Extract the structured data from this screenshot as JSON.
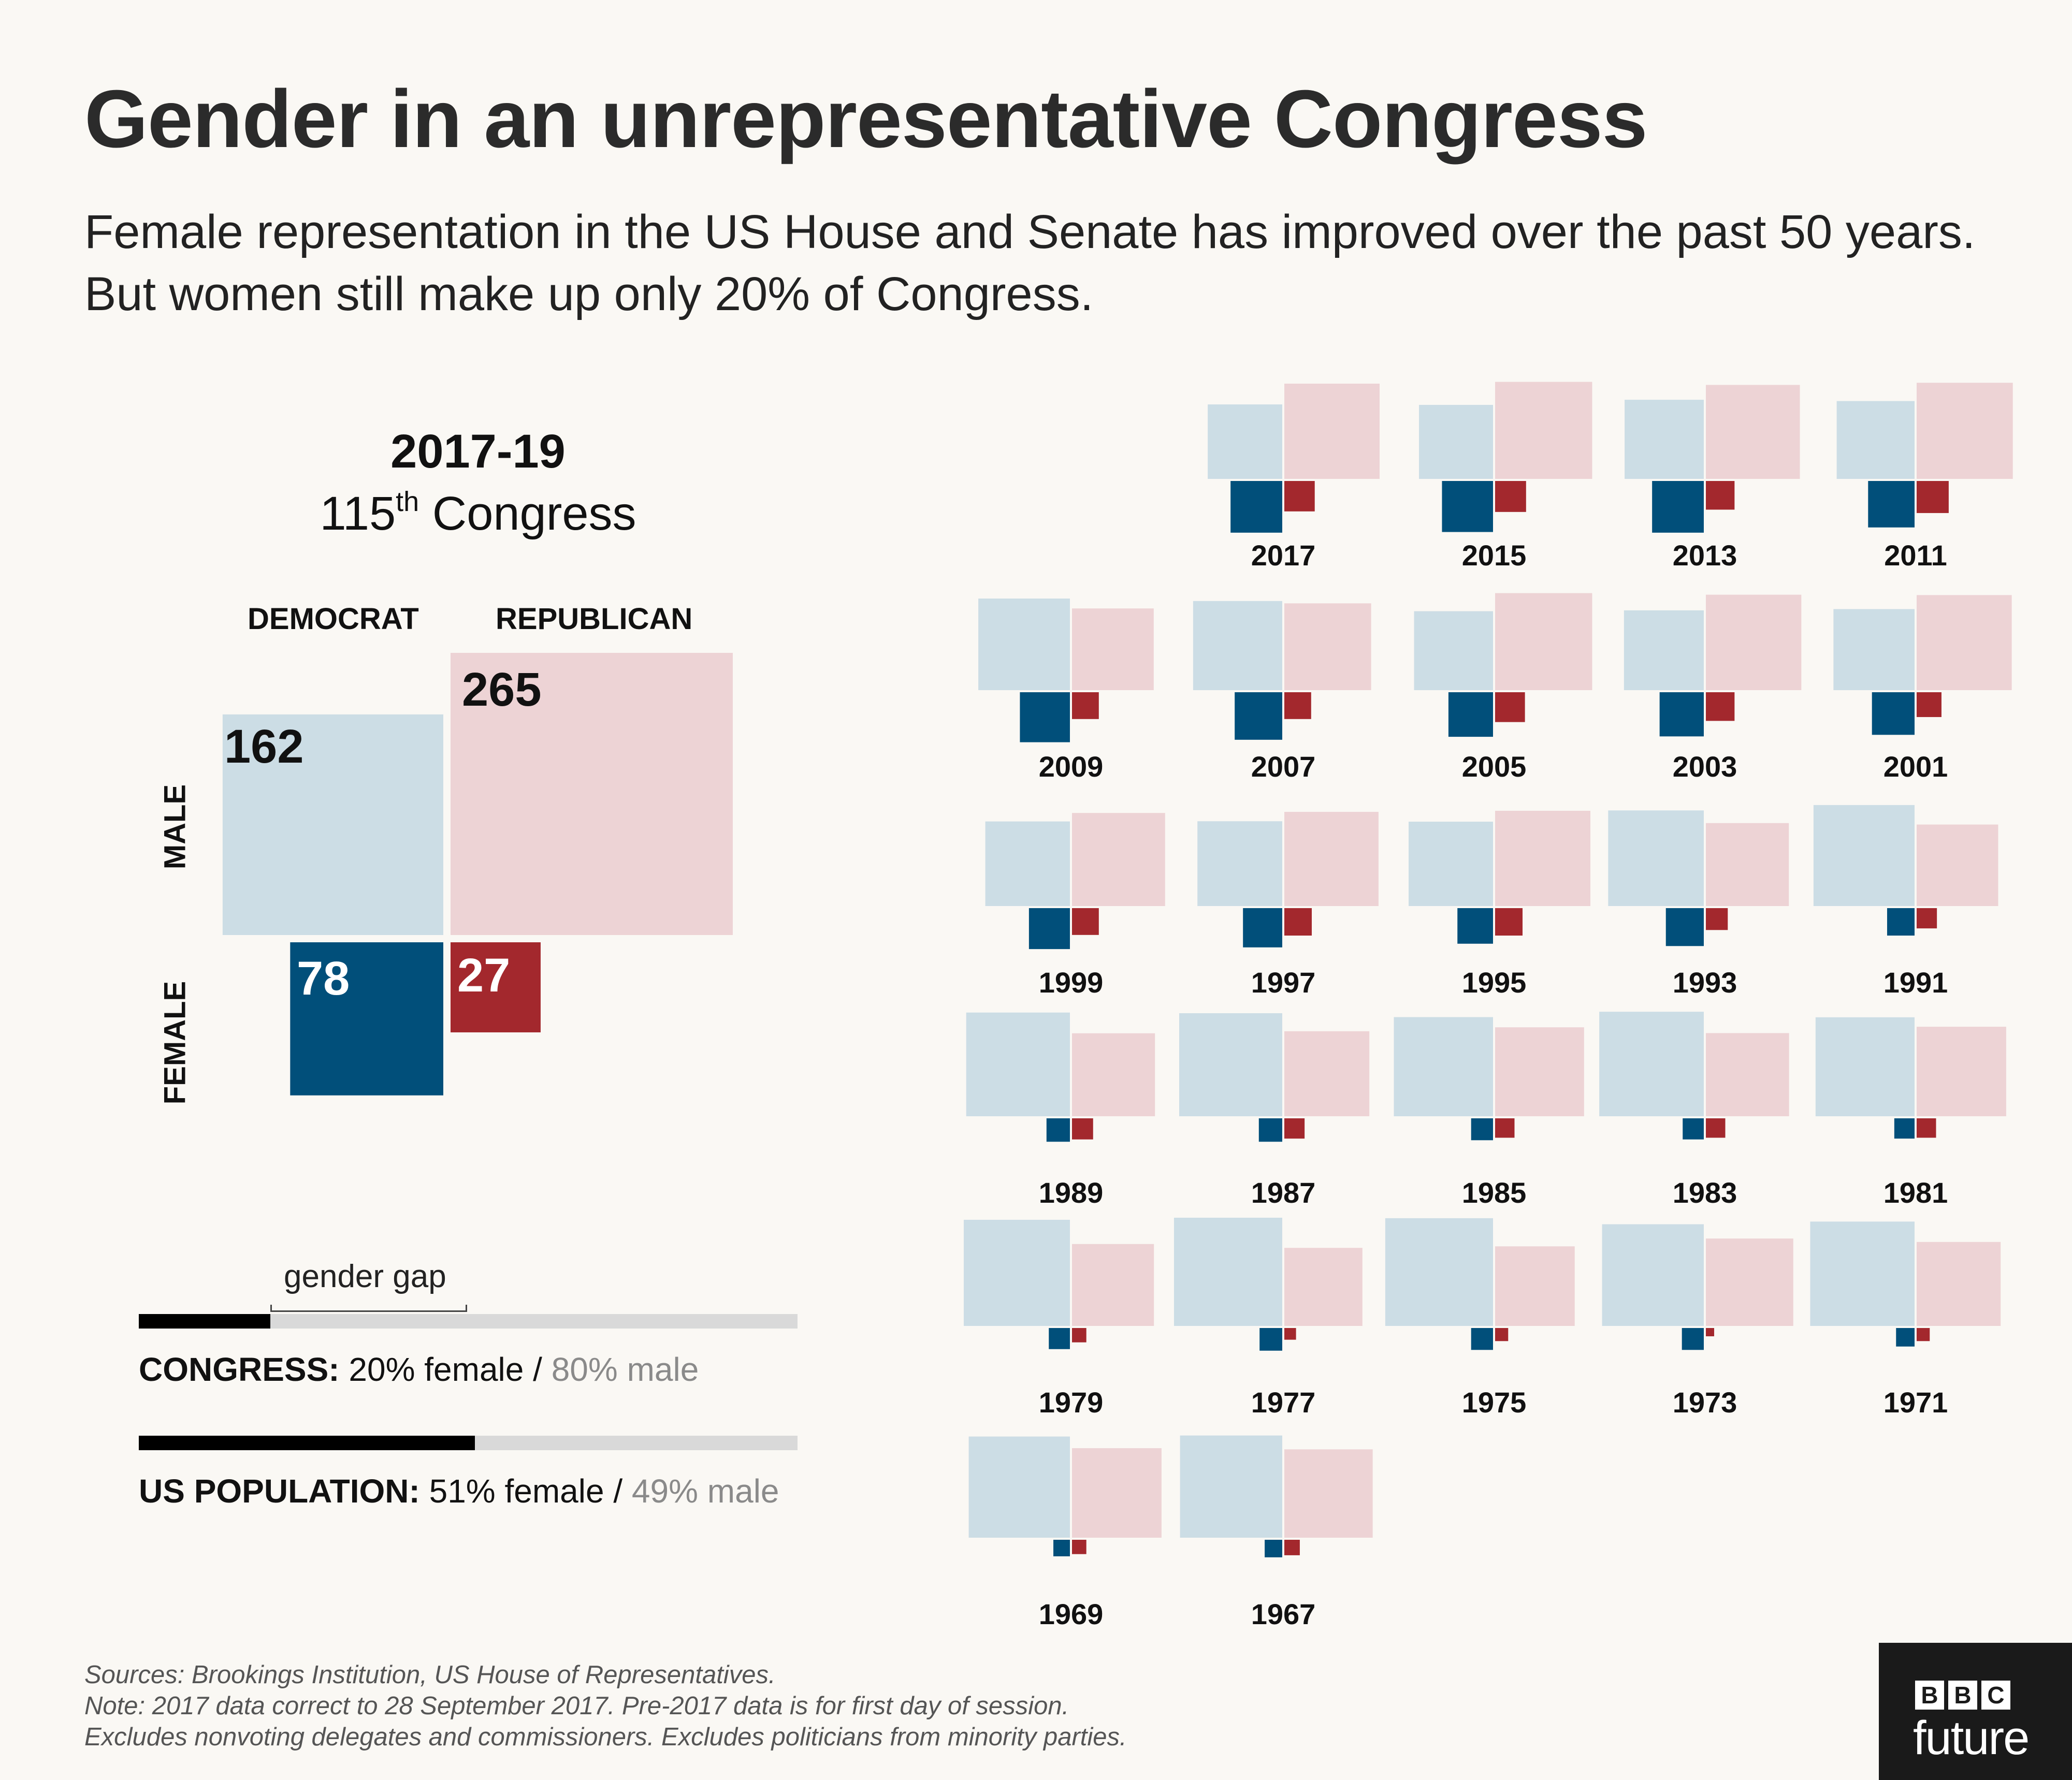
{
  "title": "Gender in an unrepresentative Congress",
  "subtitle": "Female representation in the US House and Senate has improved over the past 50 years. But women still make up only 20% of Congress.",
  "colors": {
    "dem_male": "#ccdde5",
    "rep_male": "#edd3d5",
    "dem_female": "#014f7a",
    "rep_female": "#a3282d",
    "background": "#faf8f4"
  },
  "chart_data": [
    {
      "type": "table",
      "period": "2017-19",
      "congress_number": "115",
      "congress_suffix": "th",
      "congress_word": "Congress",
      "columns": [
        "DEMOCRAT",
        "REPUBLICAN"
      ],
      "rows": [
        "MALE",
        "FEMALE"
      ],
      "values": {
        "dem_male": 162,
        "rep_male": 265,
        "dem_female": 78,
        "rep_female": 27
      }
    },
    {
      "type": "bar",
      "gap_label": "gender gap",
      "bars": [
        {
          "label": "CONGRESS:",
          "female_pct": 20,
          "male_pct": 80,
          "female_text": "20% female",
          "male_text": "80% male"
        },
        {
          "label": "US POPULATION:",
          "female_pct": 51,
          "male_pct": 49,
          "female_text": "51% female",
          "male_text": "49% male"
        }
      ]
    },
    {
      "type": "bar",
      "years": [
        {
          "year": "2017",
          "dem_male": 162,
          "rep_male": 265,
          "dem_female": 78,
          "rep_female": 27
        },
        {
          "year": "2015",
          "dem_male": 160,
          "rep_male": 275,
          "dem_female": 76,
          "rep_female": 28
        },
        {
          "year": "2013",
          "dem_male": 183,
          "rep_male": 258,
          "dem_female": 78,
          "rep_female": 24
        },
        {
          "year": "2011",
          "dem_male": 177,
          "rep_male": 270,
          "dem_female": 63,
          "rep_female": 30
        },
        {
          "year": "2009",
          "dem_male": 245,
          "rep_male": 195,
          "dem_female": 73,
          "rep_female": 21
        },
        {
          "year": "2007",
          "dem_male": 232,
          "rep_male": 220,
          "dem_female": 66,
          "rep_female": 21
        },
        {
          "year": "2005",
          "dem_male": 182,
          "rep_male": 275,
          "dem_female": 58,
          "rep_female": 26
        },
        {
          "year": "2003",
          "dem_male": 186,
          "rep_male": 266,
          "dem_female": 57,
          "rep_female": 24
        },
        {
          "year": "2001",
          "dem_male": 192,
          "rep_male": 264,
          "dem_female": 53,
          "rep_female": 18
        },
        {
          "year": "1999",
          "dem_male": 209,
          "rep_male": 253,
          "dem_female": 49,
          "rep_female": 21
        },
        {
          "year": "1997",
          "dem_male": 210,
          "rep_male": 259,
          "dem_female": 45,
          "rep_female": 22
        },
        {
          "year": "1995",
          "dem_male": 208,
          "rep_male": 265,
          "dem_female": 37,
          "rep_female": 22
        },
        {
          "year": "1993",
          "dem_male": 267,
          "rep_male": 201,
          "dem_female": 42,
          "rep_female": 14
        },
        {
          "year": "1991",
          "dem_male": 298,
          "rep_male": 194,
          "dem_female": 22,
          "rep_female": 12
        },
        {
          "year": "1989",
          "dem_male": 314,
          "rep_male": 201,
          "dem_female": 16,
          "rep_female": 13
        },
        {
          "year": "1987",
          "dem_male": 310,
          "rep_male": 211,
          "dem_female": 16,
          "rep_female": 12
        },
        {
          "year": "1985",
          "dem_male": 287,
          "rep_male": 231,
          "dem_female": 14,
          "rep_female": 11
        },
        {
          "year": "1983",
          "dem_male": 319,
          "rep_male": 202,
          "dem_female": 13,
          "rep_female": 11
        },
        {
          "year": "1981",
          "dem_male": 286,
          "rep_male": 234,
          "dem_female": 12,
          "rep_female": 11
        },
        {
          "year": "1979",
          "dem_male": 329,
          "rep_male": 196,
          "dem_female": 13,
          "rep_female": 6
        },
        {
          "year": "1977",
          "dem_male": 342,
          "rep_male": 178,
          "dem_female": 15,
          "rep_female": 4
        },
        {
          "year": "1975",
          "dem_male": 339,
          "rep_male": 185,
          "dem_female": 14,
          "rep_female": 5
        },
        {
          "year": "1973",
          "dem_male": 302,
          "rep_male": 223,
          "dem_female": 14,
          "rep_female": 2
        },
        {
          "year": "1971",
          "dem_male": 318,
          "rep_male": 206,
          "dem_female": 10,
          "rep_female": 5
        },
        {
          "year": "1969",
          "dem_male": 299,
          "rep_male": 234,
          "dem_female": 8,
          "rep_female": 6
        },
        {
          "year": "1967",
          "dem_male": 305,
          "rep_male": 228,
          "dem_female": 9,
          "rep_female": 7
        }
      ]
    }
  ],
  "sources": [
    "Sources: Brookings Institution, US House of Representatives.",
    "Note: 2017 data correct to 28 September 2017. Pre-2017 data is for first day of session.",
    "Excludes nonvoting delegates and commissioners. Excludes politicians from minority parties."
  ],
  "logo": {
    "blocks": [
      "B",
      "B",
      "C"
    ],
    "word": "future"
  }
}
